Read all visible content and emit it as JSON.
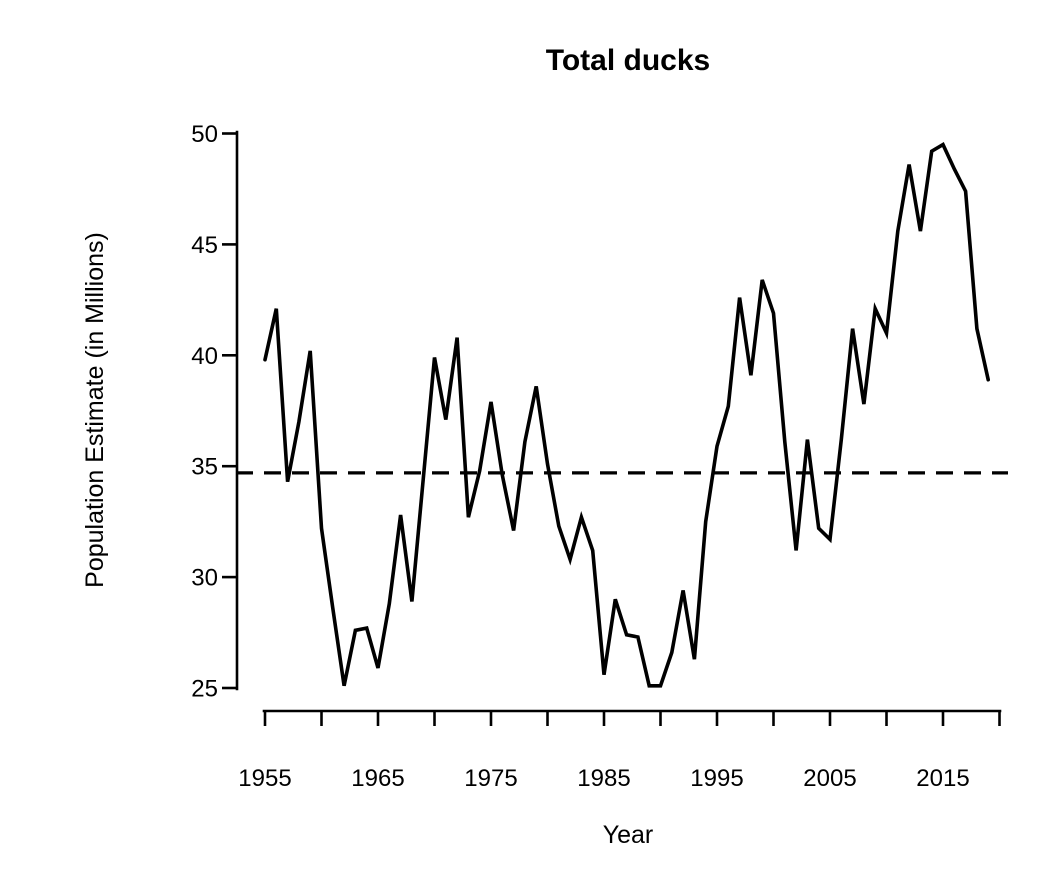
{
  "chart_data": {
    "type": "line",
    "title": "Total ducks",
    "xlabel": "Year",
    "ylabel": "Population Estimate (in Millions)",
    "x": [
      1955,
      1956,
      1957,
      1958,
      1959,
      1960,
      1961,
      1962,
      1963,
      1964,
      1965,
      1966,
      1967,
      1968,
      1969,
      1970,
      1971,
      1972,
      1973,
      1974,
      1975,
      1976,
      1977,
      1978,
      1979,
      1980,
      1981,
      1982,
      1983,
      1984,
      1985,
      1986,
      1987,
      1988,
      1989,
      1990,
      1991,
      1992,
      1993,
      1994,
      1995,
      1996,
      1997,
      1998,
      1999,
      2000,
      2001,
      2002,
      2003,
      2004,
      2005,
      2006,
      2007,
      2008,
      2009,
      2010,
      2011,
      2012,
      2013,
      2014,
      2015,
      2016,
      2017,
      2018,
      2019
    ],
    "series": [
      {
        "name": "Total ducks",
        "values": [
          39.8,
          42.1,
          34.3,
          37.0,
          40.2,
          32.2,
          28.6,
          25.1,
          27.6,
          27.7,
          25.9,
          28.8,
          32.8,
          28.9,
          34.4,
          39.9,
          37.1,
          40.8,
          32.7,
          34.8,
          37.9,
          34.6,
          32.1,
          36.1,
          38.6,
          35.1,
          32.3,
          30.8,
          32.7,
          31.2,
          25.6,
          29.0,
          27.4,
          27.3,
          25.1,
          25.1,
          26.6,
          29.4,
          26.3,
          32.5,
          35.9,
          37.7,
          42.6,
          39.1,
          43.4,
          41.9,
          36.1,
          31.2,
          36.2,
          32.2,
          31.7,
          36.2,
          41.2,
          37.8,
          42.1,
          41.0,
          45.6,
          48.6,
          45.6,
          49.2,
          49.5,
          48.4,
          47.4,
          41.2,
          38.9
        ]
      }
    ],
    "dashed_reference_line_y": 34.7,
    "xlim": [
      1955,
      2020
    ],
    "ylim": [
      25,
      50
    ],
    "x_tick_step": 5,
    "x_labeled_ticks": [
      1955,
      1965,
      1975,
      1985,
      1995,
      2005,
      2015
    ],
    "y_ticks": [
      25,
      30,
      35,
      40,
      45,
      50
    ],
    "grid": false,
    "legend": "none",
    "line_color": "#000000",
    "background_color": "#ffffff"
  }
}
